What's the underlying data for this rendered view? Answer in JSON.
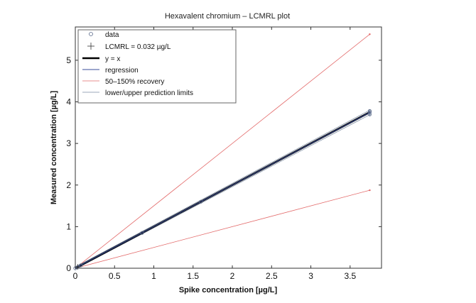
{
  "chart_data": {
    "type": "line",
    "title": "Hexavalent chromium – LCMRL plot",
    "xlabel": "Spike concentration [µg/L]",
    "ylabel": "Measured concentration [µg/L]",
    "xlim": [
      0,
      3.9
    ],
    "ylim": [
      0,
      5.8
    ],
    "x_ticks": [
      0,
      0.5,
      1,
      1.5,
      2,
      2.5,
      3,
      3.5
    ],
    "x_tick_labels": [
      "0",
      "0.5",
      "1",
      "1.5",
      "2",
      "2.5",
      "3",
      "3.5"
    ],
    "y_ticks": [
      0,
      1,
      2,
      3,
      4,
      5
    ],
    "y_tick_labels": [
      "0",
      "1",
      "2",
      "3",
      "4",
      "5"
    ],
    "grid": false,
    "legend_position": "top-left",
    "legend": [
      {
        "label": "data",
        "style": "circle-marker"
      },
      {
        "label": "LCMRL = 0.032 µg/L",
        "style": "cross-marker"
      },
      {
        "label": "y = x",
        "style": "thick-black"
      },
      {
        "label": "regression",
        "style": "blue-line"
      },
      {
        "label": "50–150% recovery",
        "style": "red-line"
      },
      {
        "label": "lower/upper prediction limits",
        "style": "gray-line"
      }
    ],
    "series": [
      {
        "name": "y = x",
        "color": "#000000",
        "x": [
          0,
          3.75
        ],
        "y": [
          0,
          3.75
        ]
      },
      {
        "name": "regression",
        "color": "#3a4e9a",
        "x": [
          0,
          3.75
        ],
        "y": [
          0.005,
          3.745
        ]
      },
      {
        "name": "50–150% recovery",
        "color": "#e36a6a",
        "lines": [
          {
            "x": [
              0,
              3.75
            ],
            "y": [
              0,
              1.875
            ]
          },
          {
            "x": [
              0,
              3.75
            ],
            "y": [
              0,
              5.625
            ]
          }
        ]
      },
      {
        "name": "lower/upper prediction limits",
        "color": "#7a8aa0",
        "lines": [
          {
            "x": [
              0,
              3.75
            ],
            "y": [
              -0.02,
              3.69
            ]
          },
          {
            "x": [
              0,
              3.75
            ],
            "y": [
              0.03,
              3.8
            ]
          }
        ]
      }
    ],
    "data_points": {
      "x": [
        0,
        0.032,
        0.07,
        0.85,
        1.6,
        3.75,
        3.75,
        3.75
      ],
      "y": [
        0.0,
        0.03,
        0.07,
        0.85,
        1.6,
        3.7,
        3.75,
        3.78
      ]
    },
    "lcmrl_point": {
      "x": 0.032,
      "y": 0.032
    }
  }
}
